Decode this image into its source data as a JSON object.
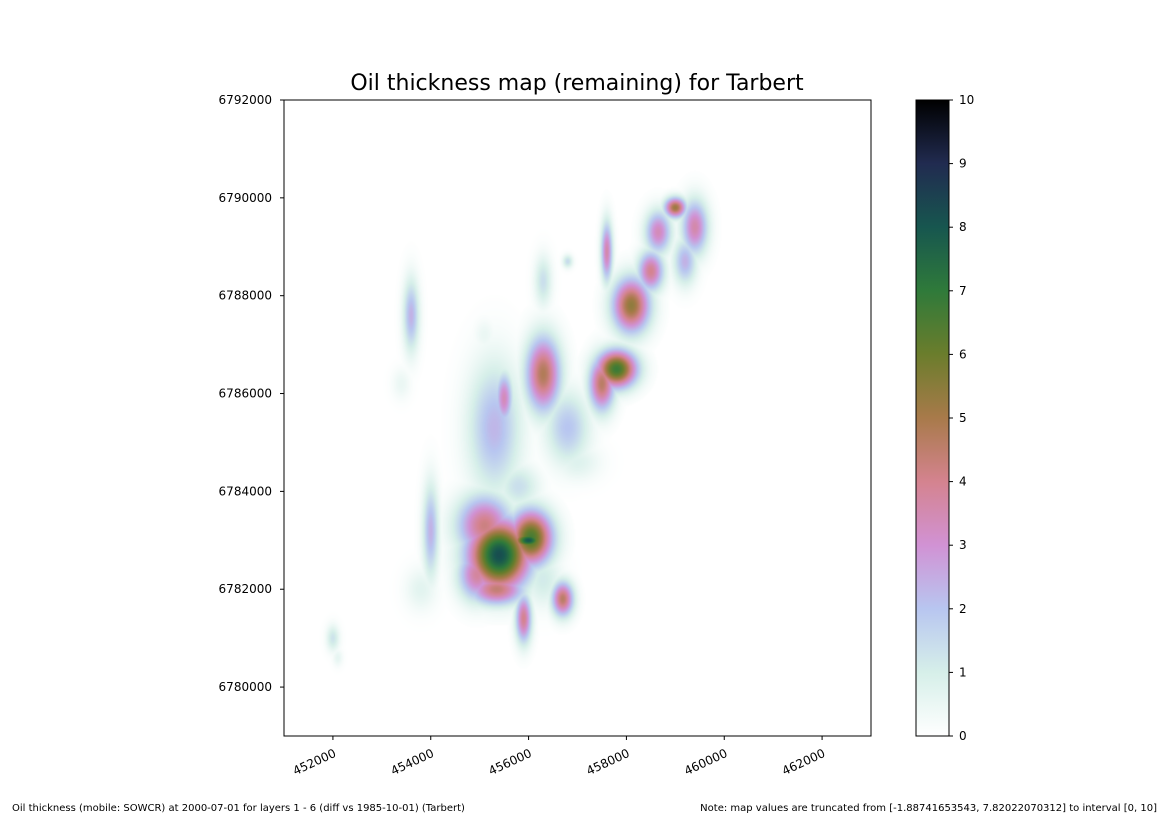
{
  "chart_data": {
    "type": "heatmap",
    "title": "Oil thickness map (remaining) for Tarbert",
    "xlabel": "",
    "ylabel": "",
    "xlim": [
      451000,
      463000
    ],
    "ylim": [
      6779000,
      6792000
    ],
    "x_ticks": [
      "452000",
      "454000",
      "456000",
      "458000",
      "460000",
      "462000"
    ],
    "y_ticks": [
      "6780000",
      "6782000",
      "6784000",
      "6786000",
      "6788000",
      "6790000",
      "6792000"
    ],
    "grid": false,
    "colorbar": {
      "colormap": "cubehelix_r",
      "range": [
        0,
        10
      ],
      "ticks": [
        "0",
        "1",
        "2",
        "3",
        "4",
        "5",
        "6",
        "7",
        "8",
        "9",
        "10"
      ]
    },
    "field": [
      {
        "x": 455400,
        "y": 6782700,
        "sx": 420,
        "sy": 480,
        "v": 8.2
      },
      {
        "x": 456050,
        "y": 6783050,
        "sx": 300,
        "sy": 380,
        "v": 6.6
      },
      {
        "x": 455100,
        "y": 6783300,
        "sx": 380,
        "sy": 420,
        "v": 4.2
      },
      {
        "x": 455350,
        "y": 6782000,
        "sx": 380,
        "sy": 220,
        "v": 4.4
      },
      {
        "x": 454950,
        "y": 6782300,
        "sx": 260,
        "sy": 360,
        "v": 3.8
      },
      {
        "x": 456700,
        "y": 6781800,
        "sx": 150,
        "sy": 240,
        "v": 4.6
      },
      {
        "x": 455900,
        "y": 6781400,
        "sx": 110,
        "sy": 340,
        "v": 4.0
      },
      {
        "x": 456300,
        "y": 6782200,
        "sx": 260,
        "sy": 380,
        "v": 1.1
      },
      {
        "x": 455800,
        "y": 6784100,
        "sx": 280,
        "sy": 300,
        "v": 1.4
      },
      {
        "x": 454000,
        "y": 6783200,
        "sx": 110,
        "sy": 650,
        "v": 2.4
      },
      {
        "x": 453800,
        "y": 6782000,
        "sx": 220,
        "sy": 300,
        "v": 0.7
      },
      {
        "x": 455300,
        "y": 6785300,
        "sx": 360,
        "sy": 900,
        "v": 2.3
      },
      {
        "x": 455500,
        "y": 6785900,
        "sx": 120,
        "sy": 360,
        "v": 3.4
      },
      {
        "x": 456300,
        "y": 6786400,
        "sx": 240,
        "sy": 520,
        "v": 4.8
      },
      {
        "x": 456800,
        "y": 6785300,
        "sx": 300,
        "sy": 500,
        "v": 2.0
      },
      {
        "x": 457800,
        "y": 6786500,
        "sx": 280,
        "sy": 260,
        "v": 6.8
      },
      {
        "x": 457500,
        "y": 6786200,
        "sx": 180,
        "sy": 380,
        "v": 4.6
      },
      {
        "x": 458100,
        "y": 6787800,
        "sx": 260,
        "sy": 380,
        "v": 5.4
      },
      {
        "x": 458500,
        "y": 6788500,
        "sx": 180,
        "sy": 280,
        "v": 4.0
      },
      {
        "x": 457600,
        "y": 6788900,
        "sx": 80,
        "sy": 420,
        "v": 3.6
      },
      {
        "x": 458650,
        "y": 6789300,
        "sx": 180,
        "sy": 300,
        "v": 3.4
      },
      {
        "x": 459000,
        "y": 6789800,
        "sx": 150,
        "sy": 140,
        "v": 5.2
      },
      {
        "x": 459400,
        "y": 6789400,
        "sx": 180,
        "sy": 380,
        "v": 3.6
      },
      {
        "x": 459200,
        "y": 6788700,
        "sx": 160,
        "sy": 320,
        "v": 2.4
      },
      {
        "x": 456800,
        "y": 6788700,
        "sx": 70,
        "sy": 90,
        "v": 1.5
      },
      {
        "x": 456300,
        "y": 6788300,
        "sx": 120,
        "sy": 350,
        "v": 1.4
      },
      {
        "x": 453600,
        "y": 6787600,
        "sx": 110,
        "sy": 500,
        "v": 2.4
      },
      {
        "x": 452000,
        "y": 6781000,
        "sx": 90,
        "sy": 180,
        "v": 1.3
      },
      {
        "x": 452100,
        "y": 6780600,
        "sx": 70,
        "sy": 120,
        "v": 0.6
      },
      {
        "x": 457000,
        "y": 6784600,
        "sx": 320,
        "sy": 260,
        "v": 0.8
      },
      {
        "x": 453400,
        "y": 6786200,
        "sx": 130,
        "sy": 220,
        "v": 0.5
      },
      {
        "x": 455100,
        "y": 6787200,
        "sx": 140,
        "sy": 220,
        "v": 0.5
      },
      {
        "x": 456000,
        "y": 6783000,
        "sx": 220,
        "sy": 120,
        "v": 8.0
      }
    ]
  },
  "footer": {
    "left": "Oil thickness (mobile: SOWCR) at 2000-07-01 for layers 1 - 6 (diff vs 1985-10-01) (Tarbert)",
    "right": "Note: map values are truncated from [-1.88741653543, 7.82022070312] to interval [0, 10]"
  }
}
